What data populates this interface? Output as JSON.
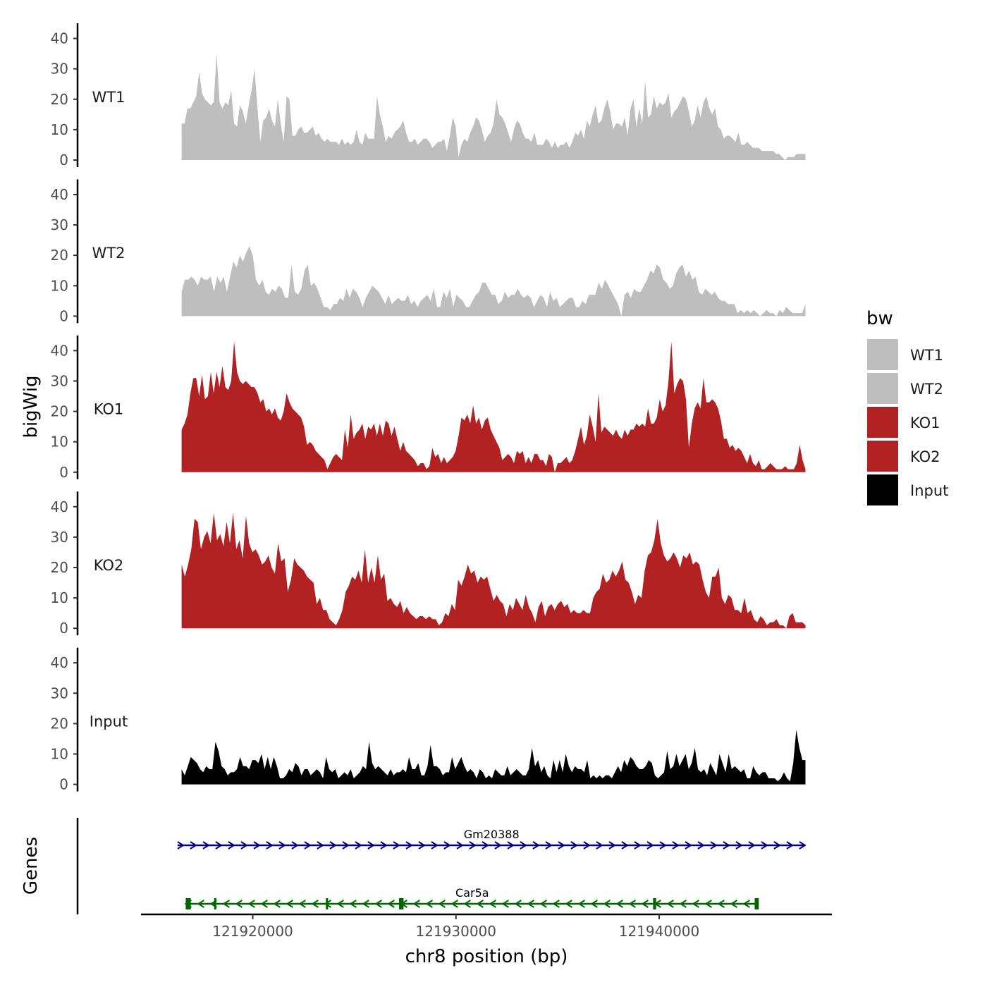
{
  "chart_data": {
    "type": "area",
    "xlabel": "chr8 position (bp)",
    "ylabel": "bigWig",
    "genes_label": "Genes",
    "xlim": [
      121914500,
      121948500
    ],
    "ylim": [
      0,
      45
    ],
    "x_ticks": [
      121920000,
      121930000,
      121940000
    ],
    "x_tick_labels": [
      "121920000",
      "121930000",
      "121940000"
    ],
    "y_ticks": [
      0,
      10,
      20,
      30,
      40
    ],
    "y_tick_labels": [
      "0",
      "10",
      "20",
      "30",
      "40"
    ],
    "x_start": 121916500,
    "x_end": 121947200,
    "legend": {
      "title": "bw",
      "entries": [
        {
          "label": "WT1",
          "color": "#bebebe"
        },
        {
          "label": "WT2",
          "color": "#bebebe"
        },
        {
          "label": "KO1",
          "color": "#b22222"
        },
        {
          "label": "KO2",
          "color": "#b22222"
        },
        {
          "label": "Input",
          "color": "#000000"
        }
      ]
    },
    "series": [
      {
        "name": "WT1",
        "color": "#bebebe",
        "values": [
          12,
          12,
          17,
          17,
          19,
          21,
          29,
          22,
          20,
          19,
          18,
          19,
          35,
          19,
          17,
          19,
          18,
          23,
          12,
          11,
          18,
          16,
          12,
          18,
          23,
          30,
          17,
          6,
          13,
          14,
          17,
          13,
          11,
          20,
          12,
          6,
          21,
          20,
          8,
          8,
          10,
          11,
          9,
          9,
          10,
          11,
          8,
          9,
          7,
          6,
          7,
          6,
          6,
          6,
          5,
          7,
          5,
          6,
          5,
          6,
          10,
          6,
          5,
          9,
          7,
          7,
          7,
          21,
          15,
          11,
          6,
          8,
          7,
          9,
          10,
          11,
          13,
          9,
          6,
          6,
          7,
          5,
          6,
          7,
          7,
          6,
          4,
          5,
          6,
          6,
          7,
          3,
          8,
          14,
          11,
          1,
          5,
          7,
          6,
          9,
          11,
          14,
          13,
          10,
          6,
          8,
          9,
          12,
          20,
          15,
          14,
          12,
          9,
          6,
          10,
          13,
          12,
          9,
          7,
          7,
          6,
          9,
          5,
          5,
          5,
          7,
          6,
          4,
          6,
          4,
          5,
          5,
          6,
          4,
          6,
          9,
          8,
          10,
          7,
          13,
          11,
          15,
          18,
          12,
          13,
          17,
          20,
          16,
          10,
          12,
          12,
          11,
          14,
          8,
          17,
          20,
          11,
          17,
          12,
          26,
          14,
          15,
          21,
          17,
          19,
          18,
          19,
          22,
          14,
          16,
          17,
          19,
          21,
          20,
          16,
          11,
          13,
          18,
          14,
          19,
          21,
          17,
          15,
          17,
          11,
          10,
          7,
          8,
          8,
          7,
          6,
          9,
          5,
          5,
          6,
          5,
          4,
          4,
          4,
          3,
          3,
          3,
          3,
          3,
          2,
          2,
          1,
          0,
          1,
          1,
          1,
          2,
          2,
          2,
          2
        ]
      },
      {
        "name": "WT2",
        "color": "#bebebe",
        "values": [
          8,
          12,
          12,
          13,
          12,
          10,
          13,
          12,
          12,
          13,
          8,
          13,
          11,
          13,
          8,
          13,
          18,
          16,
          20,
          18,
          21,
          23,
          20,
          12,
          10,
          12,
          8,
          7,
          9,
          8,
          10,
          9,
          6,
          6,
          17,
          8,
          7,
          9,
          15,
          17,
          10,
          11,
          9,
          6,
          3,
          3,
          2,
          4,
          4,
          6,
          5,
          9,
          6,
          9,
          8,
          6,
          3,
          6,
          8,
          10,
          9,
          8,
          6,
          4,
          7,
          4,
          5,
          6,
          5,
          5,
          7,
          4,
          5,
          3,
          5,
          6,
          7,
          5,
          9,
          3,
          3,
          8,
          6,
          9,
          3,
          7,
          6,
          5,
          3,
          3,
          5,
          7,
          8,
          11,
          11,
          9,
          7,
          7,
          4,
          5,
          8,
          6,
          7,
          7,
          9,
          7,
          6,
          7,
          6,
          3,
          5,
          7,
          6,
          3,
          8,
          5,
          6,
          3,
          4,
          5,
          6,
          6,
          3,
          3,
          5,
          4,
          7,
          7,
          7,
          11,
          9,
          12,
          10,
          8,
          6,
          4,
          0,
          7,
          8,
          6,
          9,
          8,
          8,
          10,
          12,
          15,
          14,
          17,
          16,
          12,
          11,
          9,
          10,
          14,
          16,
          17,
          13,
          15,
          12,
          13,
          8,
          7,
          9,
          8,
          7,
          8,
          6,
          5,
          5,
          4,
          4,
          4,
          1,
          2,
          1,
          2,
          1,
          2,
          1,
          0,
          1,
          2,
          1,
          1,
          0,
          2,
          1,
          3,
          2,
          1,
          1,
          1,
          1,
          4
        ]
      },
      {
        "name": "KO1",
        "color": "#b22222",
        "values": [
          14,
          16,
          19,
          26,
          31,
          31,
          25,
          32,
          24,
          25,
          33,
          26,
          33,
          28,
          35,
          28,
          27,
          30,
          43,
          33,
          30,
          29,
          30,
          29,
          28,
          28,
          26,
          23,
          24,
          20,
          21,
          19,
          21,
          18,
          17,
          20,
          26,
          23,
          21,
          20,
          19,
          18,
          15,
          9,
          10,
          9,
          7,
          6,
          5,
          4,
          1,
          3,
          5,
          6,
          5,
          4,
          14,
          8,
          19,
          11,
          13,
          14,
          16,
          11,
          15,
          14,
          16,
          12,
          16,
          12,
          17,
          16,
          12,
          15,
          11,
          7,
          10,
          7,
          6,
          5,
          4,
          2,
          3,
          3,
          1,
          2,
          8,
          5,
          6,
          3,
          5,
          3,
          4,
          5,
          7,
          12,
          18,
          17,
          19,
          16,
          22,
          16,
          18,
          14,
          17,
          18,
          14,
          12,
          10,
          8,
          4,
          5,
          6,
          5,
          3,
          7,
          6,
          7,
          3,
          5,
          3,
          6,
          6,
          4,
          4,
          2,
          6,
          5,
          0,
          3,
          3,
          4,
          5,
          3,
          4,
          7,
          11,
          15,
          9,
          12,
          19,
          15,
          10,
          26,
          13,
          15,
          14,
          13,
          12,
          14,
          12,
          11,
          14,
          12,
          14,
          14,
          16,
          15,
          16,
          15,
          21,
          16,
          16,
          18,
          24,
          20,
          22,
          30,
          43,
          26,
          29,
          31,
          30,
          24,
          8,
          16,
          21,
          23,
          21,
          31,
          23,
          23,
          24,
          23,
          21,
          17,
          11,
          11,
          8,
          9,
          7,
          8,
          7,
          5,
          3,
          6,
          3,
          2,
          4,
          1,
          1,
          2,
          3,
          2,
          1,
          1,
          1,
          2,
          1,
          1,
          1,
          3,
          9,
          4,
          1
        ]
      },
      {
        "name": "KO2",
        "color": "#b22222",
        "values": [
          21,
          17,
          21,
          26,
          36,
          35,
          26,
          30,
          32,
          28,
          38,
          29,
          31,
          27,
          35,
          28,
          38,
          26,
          29,
          23,
          37,
          28,
          25,
          26,
          24,
          21,
          22,
          24,
          20,
          18,
          28,
          22,
          23,
          12,
          16,
          23,
          21,
          20,
          19,
          17,
          16,
          15,
          8,
          10,
          6,
          6,
          3,
          2,
          1,
          3,
          6,
          12,
          14,
          17,
          16,
          19,
          15,
          26,
          15,
          20,
          15,
          24,
          16,
          18,
          9,
          10,
          8,
          7,
          9,
          5,
          7,
          5,
          4,
          3,
          4,
          4,
          3,
          4,
          3,
          3,
          1,
          2,
          5,
          4,
          8,
          6,
          16,
          14,
          17,
          21,
          18,
          19,
          15,
          17,
          16,
          17,
          13,
          9,
          11,
          9,
          8,
          4,
          8,
          6,
          10,
          8,
          6,
          11,
          7,
          5,
          2,
          7,
          9,
          4,
          7,
          8,
          6,
          8,
          9,
          7,
          8,
          5,
          6,
          5,
          5,
          6,
          5,
          5,
          10,
          12,
          13,
          18,
          15,
          16,
          19,
          17,
          19,
          22,
          16,
          15,
          12,
          8,
          11,
          10,
          19,
          24,
          25,
          29,
          36,
          28,
          24,
          22,
          23,
          25,
          23,
          20,
          24,
          23,
          25,
          21,
          22,
          21,
          16,
          12,
          10,
          17,
          17,
          20,
          10,
          8,
          11,
          10,
          6,
          6,
          5,
          10,
          5,
          6,
          3,
          2,
          4,
          3,
          1,
          2,
          2,
          3,
          1,
          1,
          0,
          4,
          5,
          2,
          2,
          2,
          1
        ]
      },
      {
        "name": "Input",
        "color": "#000000",
        "values": [
          5,
          3,
          6,
          9,
          8,
          7,
          5,
          4,
          6,
          5,
          5,
          14,
          11,
          6,
          5,
          3,
          4,
          4,
          5,
          9,
          6,
          6,
          5,
          8,
          8,
          7,
          10,
          5,
          9,
          5,
          9,
          6,
          2,
          2,
          3,
          5,
          4,
          7,
          6,
          3,
          5,
          5,
          3,
          4,
          5,
          4,
          2,
          9,
          5,
          4,
          5,
          2,
          3,
          4,
          3,
          5,
          2,
          3,
          4,
          6,
          5,
          14,
          7,
          5,
          6,
          5,
          4,
          3,
          5,
          3,
          4,
          4,
          5,
          4,
          9,
          5,
          5,
          7,
          3,
          3,
          6,
          13,
          6,
          6,
          5,
          3,
          4,
          4,
          9,
          5,
          7,
          9,
          6,
          4,
          5,
          4,
          2,
          5,
          4,
          2,
          3,
          2,
          5,
          4,
          3,
          3,
          6,
          3,
          4,
          5,
          4,
          3,
          3,
          5,
          12,
          6,
          8,
          4,
          6,
          3,
          2,
          8,
          4,
          8,
          4,
          10,
          6,
          4,
          6,
          5,
          5,
          4,
          8,
          2,
          3,
          2,
          3,
          2,
          3,
          3,
          2,
          4,
          6,
          4,
          8,
          6,
          9,
          8,
          6,
          5,
          5,
          6,
          8,
          7,
          3,
          2,
          3,
          4,
          11,
          5,
          6,
          10,
          6,
          8,
          10,
          5,
          7,
          12,
          5,
          4,
          5,
          3,
          7,
          5,
          3,
          10,
          7,
          4,
          10,
          5,
          6,
          5,
          4,
          5,
          2,
          2,
          6,
          4,
          3,
          4,
          4,
          2,
          2,
          2,
          1,
          2,
          4,
          2,
          1,
          7,
          18,
          12,
          8,
          8
        ]
      }
    ],
    "genes": [
      {
        "name": "Gm20388",
        "strand": "+",
        "color": "#000080",
        "start": 121916300,
        "end": 121947200,
        "exons": []
      },
      {
        "name": "Car5a",
        "strand": "-",
        "color": "#006400",
        "start": 121916700,
        "end": 121944900,
        "exons": [
          [
            121916700,
            121916950
          ],
          [
            121918100,
            121918150
          ],
          [
            121923600,
            121923680
          ],
          [
            121927200,
            121927420
          ],
          [
            121939700,
            121939850
          ],
          [
            121944700,
            121944900
          ]
        ]
      }
    ]
  }
}
